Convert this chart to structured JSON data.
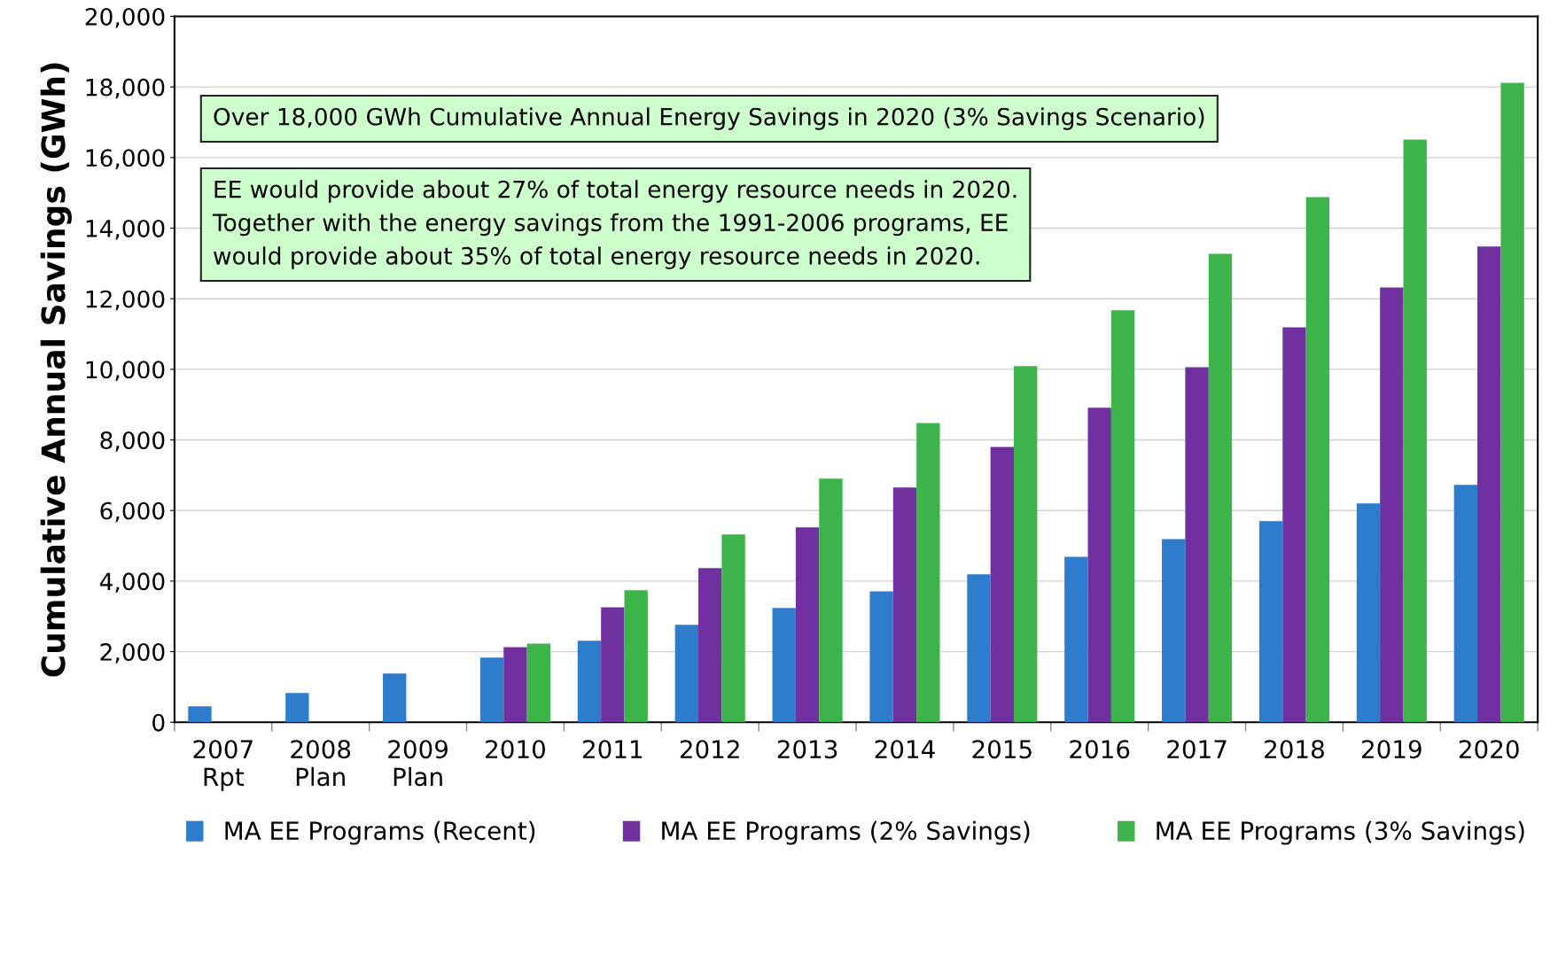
{
  "chart_data": {
    "type": "bar",
    "ylabel": "Cumulative Annual Savings (GWh)",
    "categories": [
      "2007\nRpt",
      "2008\nPlan",
      "2009\nPlan",
      "2010",
      "2011",
      "2012",
      "2013",
      "2014",
      "2015",
      "2016",
      "2017",
      "2018",
      "2019",
      "2020"
    ],
    "series": [
      {
        "name": "MA EE Programs (Recent)",
        "color": "#2e7dcc",
        "values": [
          450,
          830,
          1380,
          1830,
          2310,
          2760,
          3240,
          3710,
          4190,
          4690,
          5190,
          5700,
          6200,
          6730
        ]
      },
      {
        "name": "MA EE Programs (2% Savings)",
        "color": "#7030a0",
        "values": [
          null,
          null,
          null,
          2130,
          3260,
          4370,
          5520,
          6650,
          7800,
          8910,
          10060,
          11190,
          12320,
          13480
        ]
      },
      {
        "name": "MA EE Programs (3% Savings)",
        "color": "#3cb44a",
        "values": [
          null,
          null,
          null,
          2230,
          3740,
          5320,
          6900,
          8480,
          10090,
          11670,
          13270,
          14880,
          16510,
          18120
        ]
      }
    ],
    "ylim": [
      0,
      20000
    ],
    "yticks": [
      {
        "value": 0,
        "label": "0"
      },
      {
        "value": 2000,
        "label": "2,000"
      },
      {
        "value": 4000,
        "label": "4,000"
      },
      {
        "value": 6000,
        "label": "6,000"
      },
      {
        "value": 8000,
        "label": "8,000"
      },
      {
        "value": 10000,
        "label": "10,000"
      },
      {
        "value": 12000,
        "label": "12,000"
      },
      {
        "value": 14000,
        "label": "14,000"
      },
      {
        "value": 16000,
        "label": "16,000"
      },
      {
        "value": 18000,
        "label": "18,000"
      },
      {
        "value": 20000,
        "label": "20,000"
      }
    ],
    "grid": "y",
    "legend": "bottom",
    "annotations": [
      "Over 18,000 GWh Cumulative Annual Energy Savings in 2020 (3% Savings Scenario)",
      "EE would provide about 27% of total energy resource needs in 2020.\nTogether with the energy savings from the 1991-2006 programs, EE\nwould provide about 35% of total energy resource needs in 2020."
    ]
  }
}
